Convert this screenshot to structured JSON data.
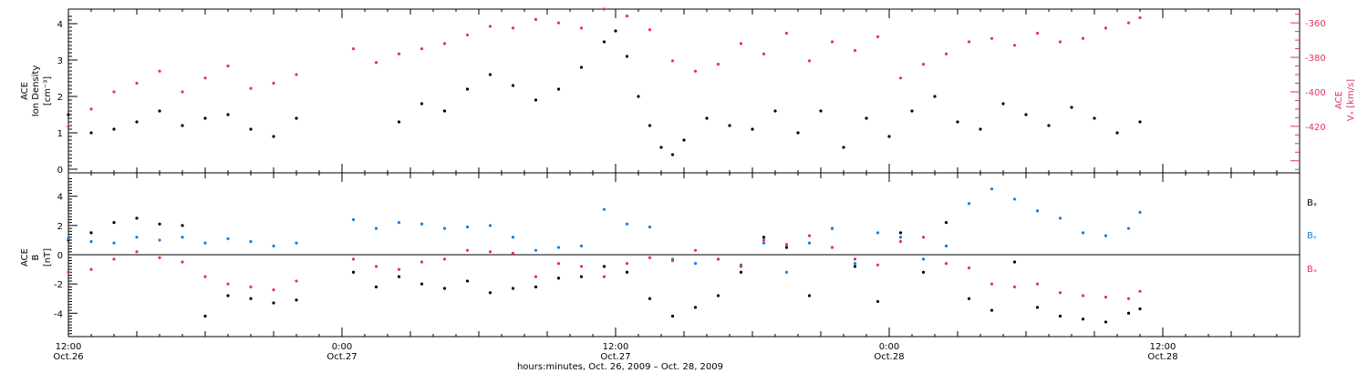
{
  "x_axis": {
    "ticks": [
      {
        "time": "12:00",
        "date": "Oct.26",
        "hour": 0
      },
      {
        "time": "0:00",
        "date": "Oct.27",
        "hour": 12
      },
      {
        "time": "12:00",
        "date": "Oct.27",
        "hour": 24
      },
      {
        "time": "0:00",
        "date": "Oct.28",
        "hour": 36
      },
      {
        "time": "12:00",
        "date": "Oct.28",
        "hour": 48
      }
    ],
    "label": "hours:minutes, Oct. 26, 2009 – Oct. 28, 2009",
    "range_hours": [
      0,
      54
    ]
  },
  "colors": {
    "black": "#000000",
    "pink": "#e8315e",
    "blue": "#1a7fd8"
  },
  "chart_data": [
    {
      "type": "scatter",
      "panel": "top",
      "ylabel_left": [
        "ACE",
        "Ion Density",
        "[cm⁻³]"
      ],
      "ylabel_right": [
        "ACE",
        "Vₓ [km/s]"
      ],
      "ylim_left": [
        -0.1,
        4.4
      ],
      "yticks_left": [
        "0",
        "1",
        "2",
        "3",
        "4"
      ],
      "ylim_right": [
        -447,
        -352
      ],
      "yticks_right": [
        "-360",
        "-380",
        "-400",
        "-420"
      ],
      "series": [
        {
          "color": "black",
          "axis": "left",
          "x": [
            0,
            1,
            2,
            3,
            4,
            5,
            6,
            7,
            8,
            9,
            10,
            14.5,
            15.5,
            16.5,
            17.5,
            18.5,
            19.5,
            20.5,
            21.5,
            22.5,
            23.5,
            24,
            24.5,
            25,
            25.5,
            26,
            26.5,
            27,
            28,
            29,
            30,
            31,
            32,
            33,
            34,
            35,
            36,
            37,
            38,
            39,
            40,
            41,
            42,
            43,
            44,
            45,
            46,
            47
          ],
          "y": [
            1.5,
            1.0,
            1.1,
            1.3,
            1.6,
            1.2,
            1.4,
            1.5,
            1.1,
            0.9,
            1.4,
            1.3,
            1.8,
            1.6,
            2.2,
            2.6,
            2.3,
            1.9,
            2.2,
            2.8,
            3.5,
            3.8,
            3.1,
            2.0,
            1.2,
            0.6,
            0.4,
            0.8,
            1.4,
            1.2,
            1.1,
            1.6,
            1.0,
            1.6,
            0.6,
            1.4,
            0.9,
            1.6,
            2.0,
            1.3,
            1.1,
            1.8,
            1.5,
            1.2,
            1.7,
            1.4,
            1.0,
            1.3
          ]
        },
        {
          "color": "pink",
          "axis": "right",
          "x": [
            0,
            1,
            2,
            3,
            4,
            5,
            6,
            7,
            8,
            9,
            10,
            12.5,
            13.5,
            14.5,
            15.5,
            16.5,
            17.5,
            18.5,
            19.5,
            20.5,
            21.5,
            22.5,
            23.5,
            24.5,
            25.5,
            26.5,
            27.5,
            28.5,
            29.5,
            30.5,
            31.5,
            32.5,
            33.5,
            34.5,
            35.5,
            36.5,
            37.5,
            38.5,
            39.5,
            40.5,
            41.5,
            42.5,
            43.5,
            44.5,
            45.5,
            46.5,
            47
          ],
          "y": [
            -420,
            -410,
            -400,
            -395,
            -388,
            -400,
            -392,
            -385,
            -398,
            -395,
            -390,
            -375,
            -383,
            -378,
            -375,
            -372,
            -367,
            -362,
            -363,
            -358,
            -360,
            -363,
            -352,
            -356,
            -364,
            -382,
            -388,
            -384,
            -372,
            -378,
            -366,
            -382,
            -371,
            -376,
            -368,
            -392,
            -384,
            -378,
            -371,
            -369,
            -373,
            -366,
            -371,
            -369,
            -363,
            -360,
            -357
          ]
        }
      ]
    },
    {
      "type": "scatter",
      "panel": "bottom",
      "ylabel_left": [
        "ACE",
        "B",
        "[nT]"
      ],
      "ylim": [
        -5.6,
        5.6
      ],
      "yticks": [
        "4",
        "2",
        "0",
        "-2",
        "-4"
      ],
      "legend": [
        "Bₓ",
        "Bᵧ",
        "Bₓ"
      ],
      "series": [
        {
          "name": "Bx",
          "color": "black",
          "x": [
            0,
            1,
            2,
            3,
            4,
            5,
            6,
            7,
            8,
            9,
            10,
            12.5,
            13.5,
            14.5,
            15.5,
            16.5,
            17.5,
            18.5,
            19.5,
            20.5,
            21.5,
            22.5,
            23.5,
            24.5,
            25.5,
            26.5,
            27.5,
            28.5,
            29.5,
            30.5,
            31.5,
            32.5,
            33.5,
            34.5,
            35.5,
            36.5,
            37.5,
            38.5,
            39.5,
            40.5,
            41.5,
            42.5,
            43.5,
            44.5,
            45.5,
            46.5,
            47
          ],
          "y": [
            1.0,
            1.5,
            2.2,
            2.5,
            2.1,
            2.0,
            -4.2,
            -2.8,
            -3.0,
            -3.3,
            -3.1,
            -1.2,
            -2.2,
            -1.5,
            -2.0,
            -2.3,
            -1.8,
            -2.6,
            -2.3,
            -2.2,
            -1.6,
            -1.5,
            -0.8,
            -1.2,
            -3.0,
            -4.2,
            -3.6,
            -2.8,
            -1.2,
            1.2,
            0.5,
            -2.8,
            1.8,
            -0.8,
            -3.2,
            1.5,
            -1.2,
            2.2,
            -3.0,
            -3.8,
            -0.5,
            -3.6,
            -4.2,
            -4.4,
            -4.6,
            -4.0,
            -3.7
          ]
        },
        {
          "name": "By",
          "color": "blue",
          "x": [
            0,
            1,
            2,
            3,
            4,
            5,
            6,
            7,
            8,
            9,
            10,
            12.5,
            13.5,
            14.5,
            15.5,
            16.5,
            17.5,
            18.5,
            19.5,
            20.5,
            21.5,
            22.5,
            23.5,
            24.5,
            25.5,
            26.5,
            27.5,
            28.5,
            29.5,
            30.5,
            31.5,
            32.5,
            33.5,
            34.5,
            35.5,
            36.5,
            37.5,
            38.5,
            39.5,
            40.5,
            41.5,
            42.5,
            43.5,
            44.5,
            45.5,
            46.5,
            47
          ],
          "y": [
            1.1,
            0.9,
            0.8,
            1.2,
            1.0,
            1.2,
            0.8,
            1.1,
            0.9,
            0.6,
            0.8,
            2.4,
            1.8,
            2.2,
            2.1,
            1.8,
            1.9,
            2.0,
            1.2,
            0.3,
            0.5,
            0.6,
            3.1,
            2.1,
            1.9,
            -0.3,
            -0.6,
            -0.3,
            -0.7,
            0.8,
            -1.2,
            0.8,
            1.8,
            -0.6,
            1.5,
            1.2,
            -0.3,
            0.6,
            3.5,
            4.5,
            3.8,
            3.0,
            2.5,
            1.5,
            1.3,
            1.8,
            2.9
          ]
        },
        {
          "name": "Bz",
          "color": "pink",
          "x": [
            0,
            1,
            2,
            3,
            4,
            5,
            6,
            7,
            8,
            9,
            10,
            12.5,
            13.5,
            14.5,
            15.5,
            16.5,
            17.5,
            18.5,
            19.5,
            20.5,
            21.5,
            22.5,
            23.5,
            24.5,
            25.5,
            26.5,
            27.5,
            28.5,
            29.5,
            30.5,
            31.5,
            32.5,
            33.5,
            34.5,
            35.5,
            36.5,
            37.5,
            38.5,
            39.5,
            40.5,
            41.5,
            42.5,
            43.5,
            44.5,
            45.5,
            46.5,
            47
          ],
          "y": [
            -1.2,
            -1.0,
            -0.3,
            0.2,
            -0.2,
            -0.5,
            -1.5,
            -2.0,
            -2.2,
            -2.4,
            -1.8,
            -0.3,
            -0.8,
            -1.0,
            -0.5,
            -0.3,
            0.3,
            0.2,
            0.1,
            -1.5,
            -0.6,
            -0.8,
            -1.5,
            -0.6,
            -0.2,
            -0.4,
            0.3,
            -0.3,
            -0.8,
            1.0,
            0.7,
            1.3,
            0.5,
            -0.3,
            -0.7,
            0.9,
            1.2,
            -0.6,
            -0.9,
            -2.0,
            -2.2,
            -2.0,
            -2.6,
            -2.8,
            -2.9,
            -3.0,
            -2.5
          ]
        }
      ]
    }
  ]
}
